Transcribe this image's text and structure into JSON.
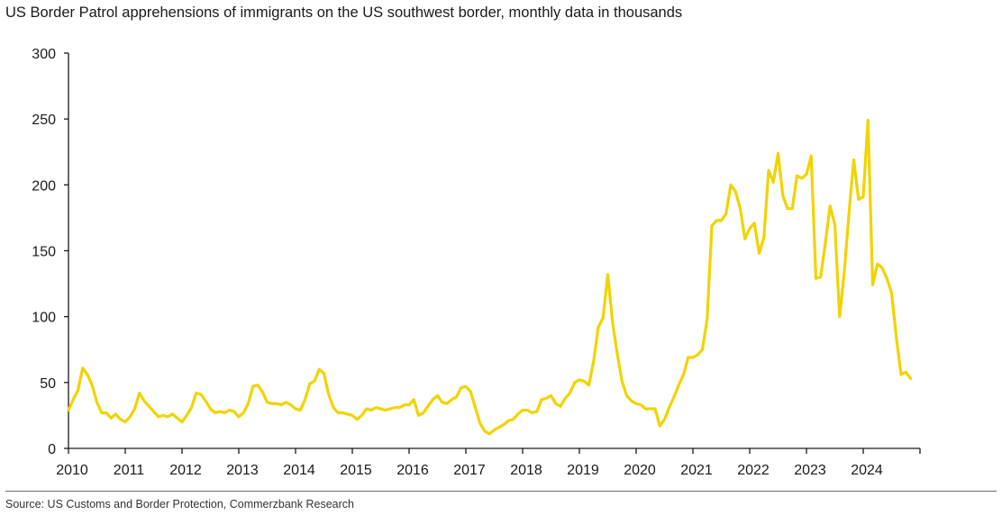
{
  "title": "US Border Patrol apprehensions of immigrants on the US southwest border, monthly data in thousands",
  "source": "Source: US Customs and Border Protection, Commerzbank Research",
  "colors": {
    "line": "#f2d300",
    "axis": "#1a1a1a",
    "text": "#1a1a1a"
  },
  "chart_data": {
    "type": "line",
    "title": "US Border Patrol apprehensions of immigrants on the US southwest border, monthly data in thousands",
    "xlabel": "",
    "ylabel": "",
    "ylim": [
      0,
      300
    ],
    "xlim": [
      2010,
      2025
    ],
    "y_ticks": [
      0,
      50,
      100,
      150,
      200,
      250,
      300
    ],
    "x_ticks": [
      "2010",
      "2011",
      "2012",
      "2013",
      "2014",
      "2015",
      "2016",
      "2017",
      "2018",
      "2019",
      "2020",
      "2021",
      "2022",
      "2023",
      "2024"
    ],
    "grid": false,
    "legend": "none",
    "series": [
      {
        "start": "2010-01",
        "frequency": "monthly",
        "values": [
          29,
          37,
          44,
          61,
          56,
          48,
          35,
          27,
          27,
          23,
          26,
          22,
          20,
          24,
          30,
          42,
          36,
          32,
          28,
          24,
          25,
          24,
          26,
          23,
          20,
          25,
          31,
          42,
          41,
          36,
          30,
          27,
          28,
          27,
          29,
          28,
          24,
          27,
          34,
          47,
          48,
          43,
          35,
          34,
          34,
          33,
          35,
          33,
          30,
          29,
          37,
          49,
          51,
          60,
          57,
          41,
          31,
          27,
          27,
          26,
          25,
          22,
          25,
          30,
          29,
          31,
          30,
          29,
          30,
          31,
          31,
          33,
          33,
          37,
          25,
          27,
          32,
          37,
          40,
          35,
          34,
          37,
          39,
          46,
          47,
          43,
          31,
          19,
          13,
          11,
          14,
          16,
          18,
          21,
          22,
          26,
          29,
          29,
          27,
          28,
          37,
          38,
          40,
          34,
          32,
          38,
          42,
          50,
          52,
          51,
          48,
          66,
          92,
          99,
          132,
          96,
          72,
          51,
          40,
          36,
          34,
          33,
          30,
          30,
          30,
          17,
          22,
          31,
          39,
          48,
          56,
          69,
          69,
          71,
          75,
          98,
          169,
          173,
          173,
          178,
          200,
          195,
          182,
          159,
          167,
          171,
          148,
          160,
          211,
          202,
          224,
          192,
          182,
          182,
          207,
          205,
          208,
          222,
          129,
          130,
          156,
          184,
          170,
          100,
          134,
          179,
          219,
          189,
          191,
          249,
          124,
          140,
          137,
          129,
          118,
          84,
          56,
          58,
          53
        ]
      }
    ]
  }
}
